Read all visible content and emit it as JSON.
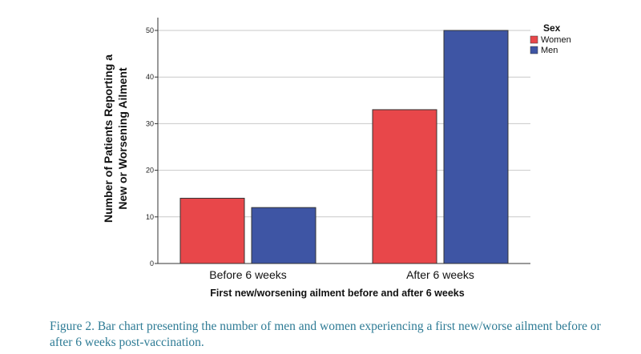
{
  "chart_data": {
    "type": "bar",
    "categories": [
      "Before 6 weeks",
      "After 6 weeks"
    ],
    "series": [
      {
        "name": "Women",
        "values": [
          14,
          33
        ],
        "color": "#e8474a"
      },
      {
        "name": "Men",
        "values": [
          12,
          50
        ],
        "color": "#3e55a4"
      }
    ],
    "xlabel": "First new/worsening ailment before and after 6 weeks",
    "ylabel_lines": [
      "Number of Patients Reporting a",
      "New or Worsening Ailment"
    ],
    "ylim": [
      0,
      55
    ],
    "yticks": [
      0,
      10,
      20,
      30,
      40,
      50
    ],
    "grid": true,
    "legend": {
      "title": "Sex",
      "position": "top-right"
    }
  },
  "caption": "Figure 2. Bar chart presenting the number of men and women experiencing a first new/worse ailment before or after 6 weeks post-vaccination."
}
